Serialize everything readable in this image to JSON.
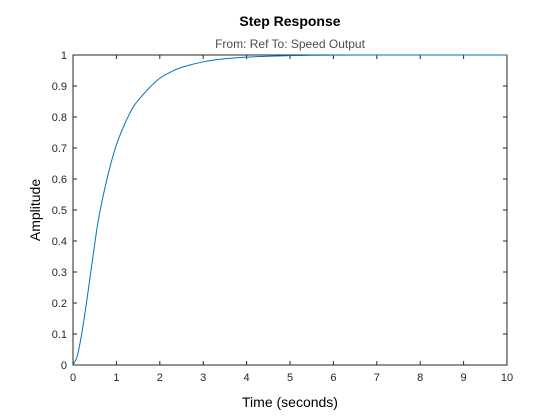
{
  "chart_data": {
    "type": "line",
    "title": "Step Response",
    "subtitle": "From: Ref  To: Speed Output",
    "xlabel": "Time (seconds)",
    "ylabel": "Amplitude",
    "xlim": [
      0,
      10
    ],
    "ylim": [
      0,
      1
    ],
    "xticks": [
      0,
      1,
      2,
      3,
      4,
      5,
      6,
      7,
      8,
      9,
      10
    ],
    "yticks": [
      0,
      0.1,
      0.2,
      0.3,
      0.4,
      0.5,
      0.6,
      0.7,
      0.8,
      0.9,
      1
    ],
    "xtick_labels": [
      "0",
      "1",
      "2",
      "3",
      "4",
      "5",
      "6",
      "7",
      "8",
      "9",
      "10"
    ],
    "ytick_labels": [
      "0",
      "0.1",
      "0.2",
      "0.3",
      "0.4",
      "0.5",
      "0.6",
      "0.7",
      "0.8",
      "0.9",
      "1"
    ],
    "grid": false,
    "series": [
      {
        "color": "#0072bd",
        "x": [
          0,
          0.1,
          0.2,
          0.3,
          0.4,
          0.5,
          0.6,
          0.8,
          1.0,
          1.2,
          1.4,
          1.6,
          1.8,
          2.0,
          2.25,
          2.5,
          3.0,
          3.5,
          4.0,
          4.5,
          5.0,
          5.5,
          6.0,
          7.0,
          8.0,
          9.0,
          10.0
        ],
        "y": [
          0,
          0.03,
          0.1,
          0.19,
          0.29,
          0.39,
          0.48,
          0.61,
          0.71,
          0.78,
          0.835,
          0.87,
          0.9,
          0.925,
          0.945,
          0.96,
          0.978,
          0.988,
          0.993,
          0.996,
          0.998,
          0.999,
          0.9995,
          1.0,
          1.0,
          1.0,
          1.0
        ]
      }
    ]
  }
}
